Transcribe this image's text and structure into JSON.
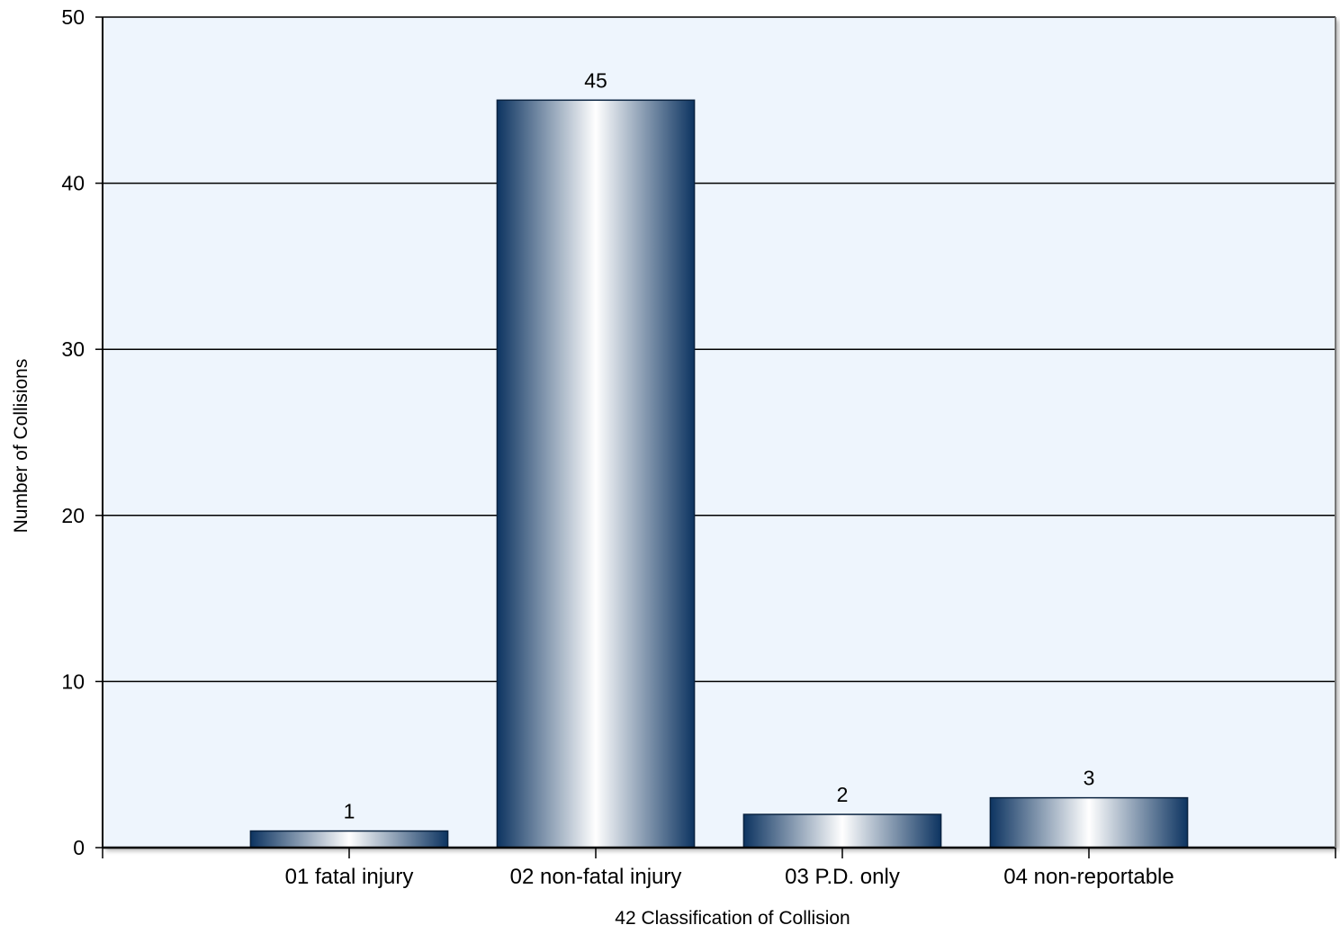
{
  "chart_data": {
    "type": "bar",
    "title": "",
    "xlabel": "42 Classification of Collision",
    "ylabel": "Number of Collisions",
    "categories": [
      "01 fatal injury",
      "02 non-fatal injury",
      "03 P.D. only",
      "04 non-reportable"
    ],
    "values": [
      1,
      45,
      2,
      3
    ],
    "ylim": [
      0,
      50
    ],
    "yticks": [
      "0",
      "10",
      "20",
      "30",
      "40",
      "50"
    ],
    "data_labels": [
      "1",
      "45",
      "2",
      "3"
    ],
    "grid": true,
    "legend": "none",
    "colors": {
      "plot_background": "#eef5fd",
      "bar_dark": "#0d3461",
      "bar_light": "#ffffff",
      "gridline": "#000000"
    }
  }
}
